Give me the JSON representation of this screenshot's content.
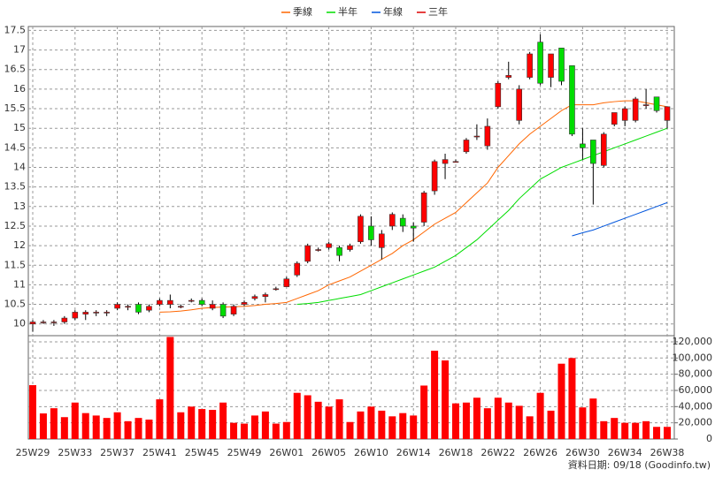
{
  "chart_data": {
    "type": "candlestick",
    "categories": [
      "25W29",
      null,
      null,
      null,
      "25W33",
      null,
      null,
      null,
      "25W37",
      null,
      null,
      null,
      "25W41",
      null,
      null,
      null,
      "25W45",
      null,
      null,
      null,
      "25W49",
      null,
      null,
      null,
      "26W01",
      null,
      null,
      null,
      "26W05",
      null,
      null,
      null,
      "26W10",
      null,
      null,
      null,
      "26W14",
      null,
      null,
      null,
      "26W18",
      null,
      null,
      null,
      "26W22",
      null,
      null,
      null,
      "26W26",
      null,
      null,
      null,
      "26W30",
      null,
      null,
      null,
      "26W34",
      null,
      null,
      null,
      "26W38"
    ],
    "open": [
      10.0,
      10.05,
      10.05,
      10.05,
      10.15,
      10.25,
      10.3,
      10.3,
      10.4,
      10.45,
      10.5,
      10.35,
      10.5,
      10.5,
      10.45,
      10.6,
      10.6,
      10.4,
      10.5,
      10.25,
      10.5,
      10.65,
      10.7,
      10.9,
      10.95,
      11.25,
      11.6,
      11.9,
      11.95,
      11.95,
      11.9,
      12.1,
      12.5,
      11.95,
      12.5,
      12.7,
      12.5,
      12.6,
      13.4,
      14.1,
      14.15,
      14.4,
      14.8,
      14.55,
      15.55,
      16.3,
      15.2,
      16.3,
      17.2,
      16.3,
      17.05,
      16.6,
      14.6,
      14.7,
      14.05,
      15.1,
      15.2,
      15.2,
      15.6,
      15.8,
      15.2
    ],
    "high": [
      10.1,
      10.1,
      10.1,
      10.2,
      10.35,
      10.35,
      10.35,
      10.35,
      10.55,
      10.5,
      10.55,
      10.5,
      10.65,
      10.75,
      10.5,
      10.65,
      10.65,
      10.6,
      10.55,
      10.5,
      10.6,
      10.75,
      10.8,
      10.95,
      11.2,
      11.6,
      12.05,
      11.95,
      12.1,
      12.0,
      12.05,
      12.8,
      12.75,
      12.4,
      12.85,
      12.8,
      12.6,
      13.4,
      14.2,
      14.35,
      14.2,
      14.75,
      15.1,
      15.25,
      16.2,
      16.7,
      16.1,
      16.95,
      17.4,
      16.9,
      17.05,
      16.6,
      15.0,
      14.7,
      14.9,
      15.4,
      15.55,
      15.8,
      16.0,
      15.8,
      15.55
    ],
    "low": [
      9.8,
      10.0,
      9.95,
      10.0,
      10.1,
      10.1,
      10.2,
      10.2,
      10.35,
      10.35,
      10.25,
      10.3,
      10.45,
      10.4,
      10.4,
      10.55,
      10.45,
      10.35,
      10.15,
      10.2,
      10.45,
      10.6,
      10.55,
      10.85,
      10.95,
      11.2,
      11.55,
      11.85,
      11.9,
      11.6,
      11.85,
      12.05,
      12.0,
      11.65,
      12.4,
      12.35,
      12.1,
      12.5,
      13.3,
      13.7,
      14.15,
      14.35,
      14.7,
      14.45,
      15.5,
      16.25,
      15.1,
      16.25,
      16.1,
      16.05,
      16.1,
      14.8,
      14.2,
      13.05,
      14.0,
      15.05,
      15.05,
      15.15,
      15.5,
      15.4,
      15.0
    ],
    "close": [
      10.05,
      10.05,
      10.05,
      10.15,
      10.3,
      10.3,
      10.3,
      10.3,
      10.5,
      10.45,
      10.3,
      10.45,
      10.6,
      10.6,
      10.45,
      10.6,
      10.5,
      10.5,
      10.2,
      10.45,
      10.55,
      10.7,
      10.75,
      10.9,
      11.15,
      11.55,
      12.0,
      11.9,
      12.05,
      11.75,
      12.0,
      12.75,
      12.15,
      12.3,
      12.8,
      12.5,
      12.45,
      13.35,
      14.15,
      14.2,
      14.15,
      14.7,
      14.8,
      15.05,
      16.15,
      16.35,
      16.0,
      16.9,
      16.15,
      16.9,
      16.2,
      14.85,
      14.5,
      14.1,
      14.85,
      15.4,
      15.5,
      15.75,
      15.6,
      15.45,
      15.55
    ],
    "volume": [
      66500,
      31600,
      38000,
      27000,
      45000,
      32000,
      29000,
      26000,
      33000,
      22000,
      26000,
      24000,
      49000,
      126000,
      33000,
      40000,
      37000,
      36000,
      45000,
      20000,
      19000,
      29000,
      34000,
      19000,
      21000,
      57000,
      54000,
      46000,
      40000,
      49000,
      21000,
      34000,
      40000,
      35000,
      28000,
      32000,
      29000,
      66000,
      109000,
      97000,
      44000,
      45000,
      51000,
      38000,
      51000,
      45000,
      41000,
      28000,
      57000,
      35000,
      93000,
      100000,
      39000,
      50000,
      22000,
      26000,
      20000,
      20000,
      22000,
      15000,
      15000
    ],
    "series": [
      {
        "name": "季線",
        "color": "#ff6600",
        "values": [
          null,
          null,
          null,
          null,
          null,
          null,
          null,
          null,
          null,
          null,
          null,
          null,
          10.3,
          10.31,
          10.33,
          10.36,
          10.4,
          10.42,
          10.43,
          10.44,
          10.45,
          10.47,
          10.5,
          10.52,
          10.55,
          10.65,
          10.75,
          10.85,
          11.0,
          11.1,
          11.2,
          11.35,
          11.5,
          11.65,
          11.8,
          12.0,
          12.15,
          12.35,
          12.55,
          12.7,
          12.85,
          13.1,
          13.35,
          13.6,
          14.0,
          14.3,
          14.6,
          14.85,
          15.05,
          15.25,
          15.45,
          15.6,
          15.6,
          15.6,
          15.65,
          15.68,
          15.7,
          15.7,
          15.65,
          15.6,
          15.55
        ]
      },
      {
        "name": "半年",
        "color": "#00dd00",
        "values": [
          null,
          null,
          null,
          null,
          null,
          null,
          null,
          null,
          null,
          null,
          null,
          null,
          null,
          null,
          null,
          null,
          null,
          null,
          null,
          null,
          null,
          null,
          null,
          null,
          null,
          10.5,
          10.52,
          10.55,
          10.6,
          10.65,
          10.7,
          10.75,
          10.85,
          10.95,
          11.05,
          11.15,
          11.25,
          11.35,
          11.45,
          11.6,
          11.75,
          11.95,
          12.15,
          12.4,
          12.65,
          12.9,
          13.2,
          13.45,
          13.7,
          13.85,
          14.0,
          14.1,
          14.2,
          14.3,
          14.4,
          14.5,
          14.6,
          14.7,
          14.8,
          14.9,
          15.0
        ]
      },
      {
        "name": "年線",
        "color": "#0055dd",
        "values": [
          null,
          null,
          null,
          null,
          null,
          null,
          null,
          null,
          null,
          null,
          null,
          null,
          null,
          null,
          null,
          null,
          null,
          null,
          null,
          null,
          null,
          null,
          null,
          null,
          null,
          null,
          null,
          null,
          null,
          null,
          null,
          null,
          null,
          null,
          null,
          null,
          null,
          null,
          null,
          null,
          null,
          null,
          null,
          null,
          null,
          null,
          null,
          null,
          null,
          null,
          null,
          12.25,
          12.33,
          12.4,
          12.5,
          12.6,
          12.7,
          12.8,
          12.9,
          13.0,
          13.1
        ]
      },
      {
        "name": "三年",
        "color": "#dd0000",
        "values": [
          null,
          null,
          null,
          null,
          null,
          null,
          null,
          null,
          null,
          null,
          null,
          null,
          null,
          null,
          null,
          null,
          null,
          null,
          null,
          null,
          null,
          null,
          null,
          null,
          null,
          null,
          null,
          null,
          null,
          null,
          null,
          null,
          null,
          null,
          null,
          null,
          null,
          null,
          null,
          null,
          null,
          null,
          null,
          null,
          null,
          null,
          null,
          null,
          null,
          null,
          null,
          null,
          null,
          null,
          null,
          null,
          null,
          null,
          null,
          null,
          null
        ]
      }
    ],
    "up_color": "#ff0000",
    "down_color": "#00dd00",
    "volume_color": "#ff0000",
    "ylim": [
      9.7,
      17.6
    ],
    "yticks": [
      10,
      10.5,
      11,
      11.5,
      12,
      12.5,
      13,
      13.5,
      14,
      14.5,
      15,
      15.5,
      16,
      16.5,
      17,
      17.5
    ],
    "y2lim": [
      0,
      127600
    ],
    "y2ticks": [
      0,
      {
        "value": 20000,
        "label": "20,000"
      },
      {
        "value": 40000,
        "label": "40,000"
      },
      {
        "value": 60000,
        "label": "60,000"
      },
      {
        "value": 80000,
        "label": "80,000"
      },
      {
        "value": 100000,
        "label": "100,000"
      },
      {
        "value": 120000,
        "label": "120,000"
      }
    ],
    "grid": true,
    "footer": "資料日期: 09/18 (Goodinfo.tw)"
  }
}
